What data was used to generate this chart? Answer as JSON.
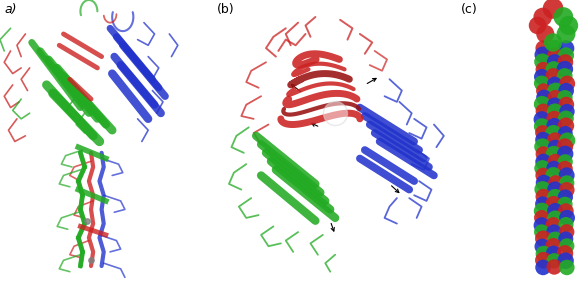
{
  "figure_width": 5.88,
  "figure_height": 2.83,
  "dpi": 100,
  "background_color": "#ffffff",
  "panel_labels": [
    "a)",
    "b)",
    "c)"
  ],
  "panel_label_fontsize": 9,
  "panel_label_color": "#000000",
  "colors": {
    "red": "#cc2222",
    "green": "#22aa22",
    "blue": "#2233cc",
    "dark_red": "#991111",
    "dark_green": "#117711",
    "dark_blue": "#112299",
    "light_red": "#ee6655",
    "light_green": "#55cc55",
    "light_blue": "#6677ee",
    "gray": "#aaaaaa",
    "white": "#ffffff"
  }
}
